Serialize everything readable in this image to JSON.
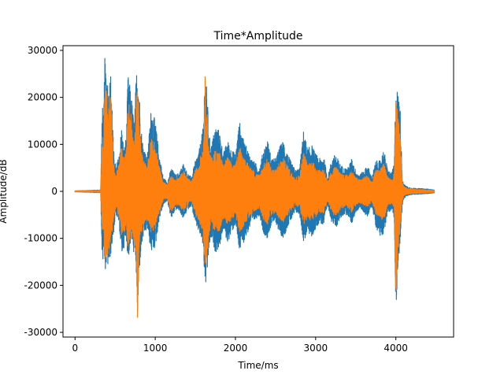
{
  "chart_data": {
    "type": "line",
    "title": "Time*Amplitude",
    "xlabel": "Time/ms",
    "ylabel": "Amplitude/dB",
    "xlim": [
      -150,
      4720
    ],
    "ylim": [
      -31000,
      31000
    ],
    "xticks": [
      0,
      1000,
      2000,
      3000,
      4000
    ],
    "yticks": [
      -30000,
      -20000,
      -10000,
      0,
      10000,
      20000,
      30000
    ],
    "grid": false,
    "series": [
      {
        "color": "#1f77b4",
        "envelope": {
          "x": [
            0,
            320,
            340,
            355,
            370,
            390,
            420,
            450,
            480,
            510,
            550,
            580,
            610,
            640,
            660,
            700,
            740,
            760,
            780,
            800,
            820,
            850,
            900,
            950,
            1000,
            1050,
            1100,
            1150,
            1200,
            1250,
            1300,
            1350,
            1400,
            1450,
            1500,
            1550,
            1600,
            1620,
            1650,
            1670,
            1700,
            1750,
            1800,
            1850,
            1900,
            1950,
            2000,
            2050,
            2100,
            2150,
            2200,
            2250,
            2300,
            2350,
            2400,
            2450,
            2500,
            2550,
            2600,
            2650,
            2700,
            2750,
            2800,
            2850,
            2900,
            2950,
            3000,
            3050,
            3100,
            3150,
            3200,
            3250,
            3300,
            3350,
            3400,
            3450,
            3500,
            3550,
            3600,
            3650,
            3700,
            3750,
            3800,
            3850,
            3900,
            3950,
            3980,
            4000,
            4020,
            4050,
            4080,
            4100,
            4150,
            4200,
            4300,
            4400,
            4480
          ],
          "upper": [
            100,
            300,
            20000,
            15000,
            28500,
            27000,
            22000,
            26000,
            9000,
            5000,
            8000,
            14000,
            9000,
            12000,
            25000,
            21000,
            14000,
            24000,
            28800,
            22000,
            14000,
            10000,
            7000,
            18000,
            15000,
            8000,
            3000,
            2000,
            5000,
            3500,
            4000,
            6000,
            4000,
            3000,
            6500,
            9000,
            14000,
            26500,
            20000,
            12000,
            10000,
            14000,
            13000,
            8000,
            11000,
            9000,
            8000,
            15000,
            11000,
            9000,
            7000,
            6000,
            5000,
            9000,
            11000,
            7000,
            7000,
            9500,
            11000,
            8000,
            6000,
            4500,
            5000,
            13000,
            9000,
            10000,
            8000,
            7000,
            7500,
            3000,
            7000,
            8000,
            6000,
            5000,
            5000,
            7000,
            4500,
            3500,
            4500,
            5500,
            3000,
            6500,
            6500,
            9000,
            4500,
            4000,
            6000,
            23500,
            21500,
            20000,
            3000,
            1500,
            900,
            700,
            600,
            500,
            300
          ],
          "lower": [
            -100,
            -300,
            -17000,
            -12000,
            -17000,
            -16000,
            -16000,
            -13000,
            -9000,
            -5000,
            -7000,
            -14000,
            -12000,
            -10000,
            -15000,
            -10000,
            -14000,
            -16000,
            -28000,
            -18000,
            -13000,
            -10000,
            -8000,
            -13000,
            -12000,
            -6000,
            -3000,
            -2000,
            -6000,
            -4000,
            -4000,
            -6000,
            -4000,
            -3000,
            -7000,
            -9000,
            -12000,
            -21000,
            -18000,
            -12000,
            -10000,
            -13000,
            -12000,
            -8000,
            -11000,
            -9000,
            -7000,
            -13000,
            -11000,
            -9000,
            -7000,
            -6000,
            -5000,
            -9000,
            -10000,
            -7000,
            -6500,
            -9000,
            -10000,
            -7500,
            -6000,
            -4500,
            -5000,
            -11000,
            -8500,
            -10000,
            -8000,
            -6500,
            -7500,
            -3000,
            -6500,
            -8000,
            -6000,
            -5000,
            -5000,
            -7000,
            -4500,
            -3500,
            -4500,
            -5500,
            -3000,
            -7500,
            -9500,
            -9000,
            -4500,
            -4000,
            -6000,
            -28000,
            -17000,
            -12000,
            -3000,
            -1500,
            -900,
            -700,
            -600,
            -500,
            -300
          ]
        }
      },
      {
        "color": "#ff7f0e",
        "envelope": {
          "x": [
            0,
            320,
            340,
            355,
            370,
            390,
            420,
            450,
            480,
            510,
            550,
            580,
            610,
            640,
            660,
            700,
            740,
            760,
            780,
            800,
            820,
            850,
            900,
            950,
            1000,
            1050,
            1100,
            1150,
            1200,
            1250,
            1300,
            1350,
            1400,
            1450,
            1500,
            1550,
            1600,
            1620,
            1650,
            1670,
            1700,
            1750,
            1800,
            1850,
            1900,
            1950,
            2000,
            2050,
            2100,
            2150,
            2200,
            2250,
            2300,
            2350,
            2400,
            2450,
            2500,
            2550,
            2600,
            2650,
            2700,
            2750,
            2800,
            2850,
            2900,
            2950,
            3000,
            3050,
            3100,
            3150,
            3200,
            3250,
            3300,
            3350,
            3400,
            3450,
            3500,
            3550,
            3600,
            3650,
            3700,
            3750,
            3800,
            3850,
            3900,
            3950,
            3980,
            4000,
            4020,
            4050,
            4080,
            4100,
            4150,
            4200,
            4300,
            4400,
            4480
          ],
          "upper": [
            80,
            200,
            14000,
            10000,
            25000,
            23000,
            18000,
            21000,
            6000,
            3500,
            6000,
            10000,
            7000,
            9000,
            20000,
            17000,
            10000,
            19000,
            24000,
            16000,
            10000,
            7000,
            5000,
            12000,
            10000,
            5500,
            2000,
            1500,
            3500,
            2500,
            3000,
            4500,
            3000,
            2000,
            4500,
            6500,
            10000,
            25000,
            16000,
            9000,
            7000,
            9000,
            8500,
            5500,
            7500,
            6000,
            5500,
            10000,
            7500,
            6000,
            5000,
            4000,
            3500,
            6000,
            7000,
            5000,
            4500,
            6500,
            7000,
            5500,
            4000,
            3000,
            3500,
            8500,
            6000,
            6500,
            5500,
            4500,
            5000,
            2000,
            4500,
            5500,
            4000,
            3500,
            3500,
            4500,
            3000,
            2500,
            3000,
            3500,
            2000,
            4500,
            4500,
            6500,
            3000,
            2500,
            4000,
            20000,
            17000,
            13000,
            2000,
            1000,
            600,
            500,
            400,
            300,
            200
          ],
          "lower": [
            -80,
            -200,
            -10000,
            -8000,
            -15000,
            -14000,
            -13000,
            -11000,
            -6000,
            -3500,
            -5500,
            -10000,
            -9000,
            -8000,
            -13000,
            -8000,
            -11000,
            -13000,
            -28000,
            -14000,
            -10000,
            -7000,
            -6000,
            -9000,
            -8000,
            -4500,
            -2000,
            -1500,
            -4500,
            -3000,
            -3000,
            -4500,
            -3000,
            -2000,
            -5000,
            -6500,
            -9000,
            -18000,
            -14000,
            -9000,
            -7000,
            -9000,
            -8500,
            -5500,
            -7500,
            -6000,
            -5000,
            -9000,
            -7500,
            -6000,
            -5000,
            -4000,
            -3500,
            -6000,
            -7000,
            -5000,
            -4500,
            -6000,
            -7000,
            -5000,
            -4000,
            -3000,
            -3500,
            -7500,
            -5500,
            -6500,
            -5500,
            -4500,
            -5000,
            -2000,
            -4500,
            -5500,
            -4000,
            -3500,
            -3500,
            -4500,
            -3000,
            -2500,
            -3000,
            -3500,
            -2000,
            -5000,
            -6000,
            -6000,
            -3000,
            -2500,
            -4000,
            -26000,
            -15000,
            -9000,
            -2000,
            -1000,
            -600,
            -500,
            -400,
            -300,
            -200
          ]
        }
      }
    ]
  }
}
